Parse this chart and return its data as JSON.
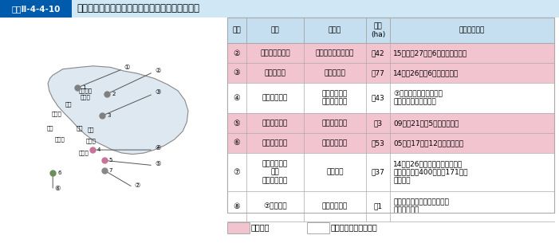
{
  "title_box_text": "図表Ⅱ-4-4-10",
  "title_main": "神奈川県における在日米軍施設・区域の整理など",
  "header": [
    "位置",
    "名称",
    "所在地",
    "面積\n(ha)",
    "返還予定など"
  ],
  "rows": [
    {
      "num": "②",
      "name": "上瀮谷通信施設",
      "location": "横浜市瀮谷区、旭区",
      "area": "終42",
      "note": "15（平成27）年6月末に返還済み",
      "highlight": true
    },
    {
      "num": "③",
      "name": "深谷通信所",
      "location": "横浜市泉区",
      "area": "終77",
      "note": "14（同26）年6月に返還済み",
      "highlight": true
    },
    {
      "num": "④",
      "name": "根岸住宅地区",
      "location": "横浜市中区、\n南区、磴子区",
      "area": "終43",
      "note": "⑦における家族住宅等の\n　建設完了時点で返還",
      "highlight": false
    },
    {
      "num": "⑤",
      "name": "富岡倉庫地区",
      "location": "横浜市金沢区",
      "area": "終3",
      "note": "09（同21）年5月に返還済み",
      "highlight": true
    },
    {
      "num": "⑥",
      "name": "小柴貴油施設",
      "location": "横浜市金沢区",
      "area": "終53",
      "note": "05（同17）年12月に返還済み",
      "highlight": true
    },
    {
      "num": "⑦",
      "name": "池子住宅地区\n及び\n海軍補助施設",
      "location": "横浜市域",
      "area": "終37",
      "note": "14（同26）年、住宅建設戸数を\n当初計画の経400戸から171戸に\n変更合意",
      "highlight": false
    },
    {
      "num": "⑧",
      "name": "⑦の飛び地",
      "location": "横浜市金沢区",
      "area": "終1",
      "note": "現在の使用が終了した時点で\n返還手続開始",
      "highlight": false
    }
  ],
  "legend1_text": "：実施済",
  "legend2_text": "：実施中又は実施予定",
  "highlight_color": "#f2c4d0",
  "header_bg": "#c5dff0",
  "border_color": "#aaaaaa",
  "title_bg": "#005bac",
  "title_text_color": "#ffffff",
  "outer_border": "#aaaaaa",
  "map_area_color": "#e0e8f0"
}
